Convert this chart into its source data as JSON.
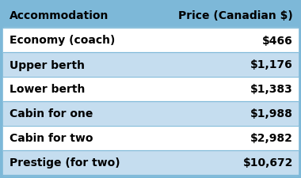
{
  "headers": [
    "Accommodation",
    "Price (Canadian $)"
  ],
  "rows": [
    [
      "Economy (coach)",
      "$466"
    ],
    [
      "Upper berth",
      "$1,176"
    ],
    [
      "Lower berth",
      "$1,383"
    ],
    [
      "Cabin for one",
      "$1,988"
    ],
    [
      "Cabin for two",
      "$2,982"
    ],
    [
      "Prestige (for two)",
      "$10,672"
    ]
  ],
  "header_bg": "#7db8d8",
  "row_colors": [
    "#ffffff",
    "#c5ddef"
  ],
  "header_text_color": "#000000",
  "row_text_color": "#000000",
  "figsize": [
    3.8,
    2.26
  ],
  "dpi": 100,
  "fig_bg": "#7db8d8"
}
